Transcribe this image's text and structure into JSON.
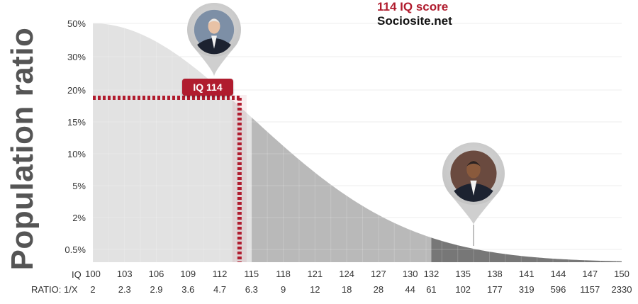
{
  "header": {
    "title": "114 IQ score",
    "site": "Sociosite.net"
  },
  "chart_data": {
    "type": "area",
    "ylabel": "Population ratio",
    "y_ticks": [
      "50%",
      "30%",
      "20%",
      "15%",
      "10%",
      "5%",
      "2%",
      "0.5%"
    ],
    "x_row_label": "IQ",
    "ratio_row_label": "RATIO: 1/X",
    "iq_values": [
      100,
      103,
      106,
      109,
      112,
      115,
      118,
      121,
      124,
      127,
      130,
      132,
      135,
      138,
      141,
      144,
      147,
      150
    ],
    "ratio_values": [
      "2",
      "2.3",
      "2.9",
      "3.6",
      "4.7",
      "6.3",
      "9",
      "12",
      "18",
      "28",
      "44",
      "61",
      "102",
      "177",
      "319",
      "596",
      "1157",
      "2330"
    ],
    "xlim": [
      100,
      150
    ],
    "bands": [
      {
        "from": 100,
        "to": 115,
        "color": "#e2e2e2"
      },
      {
        "from": 115,
        "to": 132,
        "color": "#b9b9b9"
      },
      {
        "from": 132,
        "to": 150,
        "color": "#777777"
      }
    ],
    "highlight": {
      "iq": 114,
      "label": "IQ 114",
      "color": "#b01c2e"
    },
    "markers": [
      {
        "iq": 113.5,
        "icon": "portrait-pin-icon"
      },
      {
        "iq": 140.5,
        "icon": "portrait-pin-icon"
      }
    ]
  }
}
